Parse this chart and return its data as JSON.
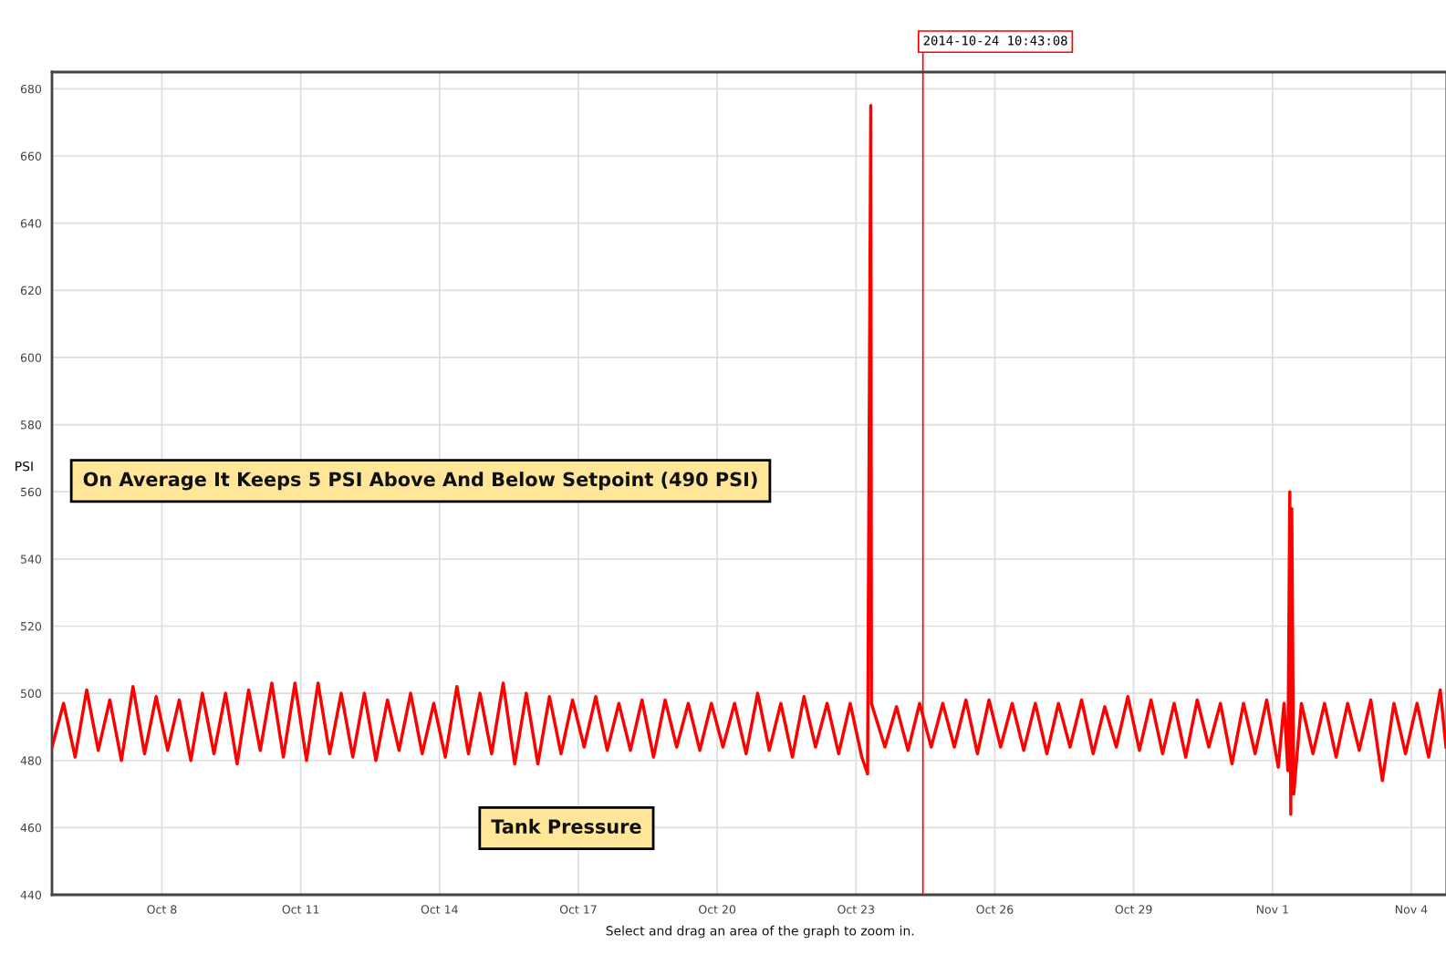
{
  "chart_data": {
    "type": "line",
    "ylabel": "PSI",
    "x": [
      "2014-10-05T15:00",
      "2014-10-05T21:00",
      "2014-10-06T03:00",
      "2014-10-06T09:00",
      "2014-10-06T15:00",
      "2014-10-06T21:00",
      "2014-10-07T03:00",
      "2014-10-07T09:00",
      "2014-10-07T15:00",
      "2014-10-07T21:00",
      "2014-10-08T03:00",
      "2014-10-08T09:00",
      "2014-10-08T15:00",
      "2014-10-08T21:00",
      "2014-10-09T03:00",
      "2014-10-09T09:00",
      "2014-10-09T15:00",
      "2014-10-09T21:00",
      "2014-10-10T03:00",
      "2014-10-10T09:00",
      "2014-10-10T15:00",
      "2014-10-10T21:00",
      "2014-10-11T03:00",
      "2014-10-11T09:00",
      "2014-10-11T15:00",
      "2014-10-11T21:00",
      "2014-10-12T03:00",
      "2014-10-12T09:00",
      "2014-10-12T15:00",
      "2014-10-12T21:00",
      "2014-10-13T03:00",
      "2014-10-13T09:00",
      "2014-10-13T15:00",
      "2014-10-13T21:00",
      "2014-10-14T03:00",
      "2014-10-14T09:00",
      "2014-10-14T15:00",
      "2014-10-14T21:00",
      "2014-10-15T03:00",
      "2014-10-15T09:00",
      "2014-10-15T15:00",
      "2014-10-15T21:00",
      "2014-10-16T03:00",
      "2014-10-16T09:00",
      "2014-10-16T15:00",
      "2014-10-16T21:00",
      "2014-10-17T03:00",
      "2014-10-17T09:00",
      "2014-10-17T15:00",
      "2014-10-17T21:00",
      "2014-10-18T03:00",
      "2014-10-18T09:00",
      "2014-10-18T15:00",
      "2014-10-18T21:00",
      "2014-10-19T03:00",
      "2014-10-19T09:00",
      "2014-10-19T15:00",
      "2014-10-19T21:00",
      "2014-10-20T03:00",
      "2014-10-20T09:00",
      "2014-10-20T15:00",
      "2014-10-20T21:00",
      "2014-10-21T03:00",
      "2014-10-21T09:00",
      "2014-10-21T15:00",
      "2014-10-21T21:00",
      "2014-10-22T03:00",
      "2014-10-22T09:00",
      "2014-10-22T15:00",
      "2014-10-22T21:00",
      "2014-10-23T03:00",
      "2014-10-23T06:00",
      "2014-10-23T07:40",
      "2014-10-23T08:00",
      "2014-10-23T15:00",
      "2014-10-23T21:00",
      "2014-10-24T03:00",
      "2014-10-24T09:00",
      "2014-10-24T15:00",
      "2014-10-24T21:00",
      "2014-10-25T03:00",
      "2014-10-25T09:00",
      "2014-10-25T15:00",
      "2014-10-25T21:00",
      "2014-10-26T03:00",
      "2014-10-26T09:00",
      "2014-10-26T15:00",
      "2014-10-26T21:00",
      "2014-10-27T03:00",
      "2014-10-27T09:00",
      "2014-10-27T15:00",
      "2014-10-27T21:00",
      "2014-10-28T03:00",
      "2014-10-28T09:00",
      "2014-10-28T15:00",
      "2014-10-28T21:00",
      "2014-10-29T03:00",
      "2014-10-29T09:00",
      "2014-10-29T15:00",
      "2014-10-29T21:00",
      "2014-10-30T03:00",
      "2014-10-30T09:00",
      "2014-10-30T15:00",
      "2014-10-30T21:00",
      "2014-10-31T03:00",
      "2014-10-31T09:00",
      "2014-10-31T15:00",
      "2014-10-31T21:00",
      "2014-11-01T03:00",
      "2014-11-01T06:00",
      "2014-11-01T08:00",
      "2014-11-01T09:00",
      "2014-11-01T09:30",
      "2014-11-01T10:00",
      "2014-11-01T11:00",
      "2014-11-01T15:00",
      "2014-11-01T21:00",
      "2014-11-02T03:00",
      "2014-11-02T09:00",
      "2014-11-02T15:00",
      "2014-11-02T21:00",
      "2014-11-03T03:00",
      "2014-11-03T09:00",
      "2014-11-03T15:00",
      "2014-11-03T21:00",
      "2014-11-04T03:00",
      "2014-11-04T09:00",
      "2014-11-04T15:00",
      "2014-11-04T18:00"
    ],
    "series": [
      {
        "color": "#ff0000",
        "values": [
          484,
          497,
          481,
          501,
          483,
          498,
          480,
          502,
          482,
          499,
          483,
          498,
          480,
          500,
          482,
          500,
          479,
          501,
          483,
          503,
          481,
          503,
          480,
          503,
          482,
          500,
          481,
          500,
          480,
          498,
          483,
          500,
          482,
          497,
          481,
          502,
          482,
          500,
          482,
          503,
          479,
          500,
          479,
          499,
          482,
          498,
          484,
          499,
          483,
          497,
          483,
          498,
          481,
          498,
          484,
          497,
          483,
          497,
          484,
          497,
          482,
          500,
          483,
          497,
          481,
          499,
          484,
          497,
          482,
          497,
          481,
          476,
          675,
          497,
          484,
          496,
          483,
          497,
          484,
          497,
          484,
          498,
          482,
          498,
          484,
          497,
          483,
          497,
          482,
          497,
          484,
          498,
          482,
          496,
          484,
          499,
          483,
          498,
          482,
          497,
          481,
          498,
          484,
          497,
          479,
          497,
          482,
          498,
          478,
          497,
          477,
          560,
          464,
          555,
          470,
          497,
          482,
          497,
          481,
          497,
          483,
          498,
          474,
          497,
          482,
          497,
          481,
          501,
          484
        ]
      }
    ],
    "xlim": [
      "2014-10-05T15:00",
      "2014-11-04T18:00"
    ],
    "xticks": [
      {
        "value": "2014-10-08",
        "label": "Oct 8"
      },
      {
        "value": "2014-10-11",
        "label": "Oct 11"
      },
      {
        "value": "2014-10-14",
        "label": "Oct 14"
      },
      {
        "value": "2014-10-17",
        "label": "Oct 17"
      },
      {
        "value": "2014-10-20",
        "label": "Oct 20"
      },
      {
        "value": "2014-10-23",
        "label": "Oct 23"
      },
      {
        "value": "2014-10-26",
        "label": "Oct 26"
      },
      {
        "value": "2014-10-29",
        "label": "Oct 29"
      },
      {
        "value": "2014-11-01",
        "label": "Nov 1"
      },
      {
        "value": "2014-11-04",
        "label": "Nov 4"
      }
    ],
    "ylim": [
      440,
      685
    ],
    "yticks": [
      440,
      460,
      480,
      500,
      520,
      540,
      560,
      580,
      600,
      620,
      640,
      660,
      680
    ],
    "grid": true,
    "line_style": "solid",
    "marker": "none",
    "ref_lines": [
      {
        "axis": "x",
        "value": "2014-10-24T10:43:08",
        "label": "2014-10-24 10:43:08",
        "color": "#ff0000"
      }
    ],
    "annotations": [
      "On Average It Keeps 5 PSI Above And Below Setpoint (490 PSI)",
      "Tank Pressure",
      "Select and drag an area of the graph to zoom in."
    ]
  }
}
